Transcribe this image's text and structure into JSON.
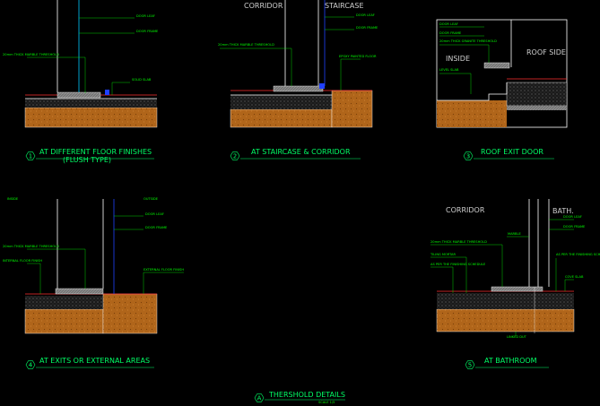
{
  "panels": [
    {
      "number": "1",
      "title": "AT DIFFERENT FLOOR FINISHES",
      "subtitle": "(FLUSH TYPE)",
      "rooms": [],
      "labels": [
        "DOOR LEAF",
        "DOOR FRAME",
        "20mm THICK MARBLE THRESHOLD",
        "SOLID SLAB"
      ]
    },
    {
      "number": "2",
      "title": "AT STAIRCASE & CORRIDOR",
      "rooms": [
        "CORRIDOR",
        "STAIRCASE"
      ],
      "labels": [
        "DOOR LEAF",
        "DOOR FRAME",
        "20mm THICK MARBLE THRESHOLD",
        "EPOXY PAINTED FLOOR"
      ]
    },
    {
      "number": "3",
      "title": "ROOF EXIT DOOR",
      "rooms": [
        "INSIDE",
        "ROOF SIDE"
      ],
      "labels": [
        "DOOR LEAF",
        "DOOR FRAME",
        "20mm THICK GRANITE THRESHOLD",
        "LEVEL SLAB"
      ]
    },
    {
      "number": "4",
      "title": "AT EXITS OR EXTERNAL AREAS",
      "rooms": [
        "INSIDE",
        "OUTSIDE"
      ],
      "labels": [
        "DOOR LEAF",
        "DOOR FRAME",
        "20mm THICK MARBLE THRESHOLD",
        "INTERNAL FLOOR FINISH",
        "EXTERNAL FLOOR FINISH"
      ]
    },
    {
      "number": "5",
      "title": "AT BATHROOM",
      "rooms": [
        "CORRIDOR",
        "BATH."
      ],
      "labels": [
        "DOOR LEAF",
        "DOOR FRAME",
        "MARBLE",
        "20mm THICK MARBLE THRESHOLD",
        "TILING MORTAR",
        "AS PER THE FINISHING SCHEDULE",
        "AS PER THE FINISHING SCHEDULE",
        "COVE SLAB",
        "LINKED DUT"
      ]
    }
  ],
  "footer": {
    "number": "A",
    "title": "THERSHOLD DETAILS",
    "scale": "SCALE 1/5"
  }
}
